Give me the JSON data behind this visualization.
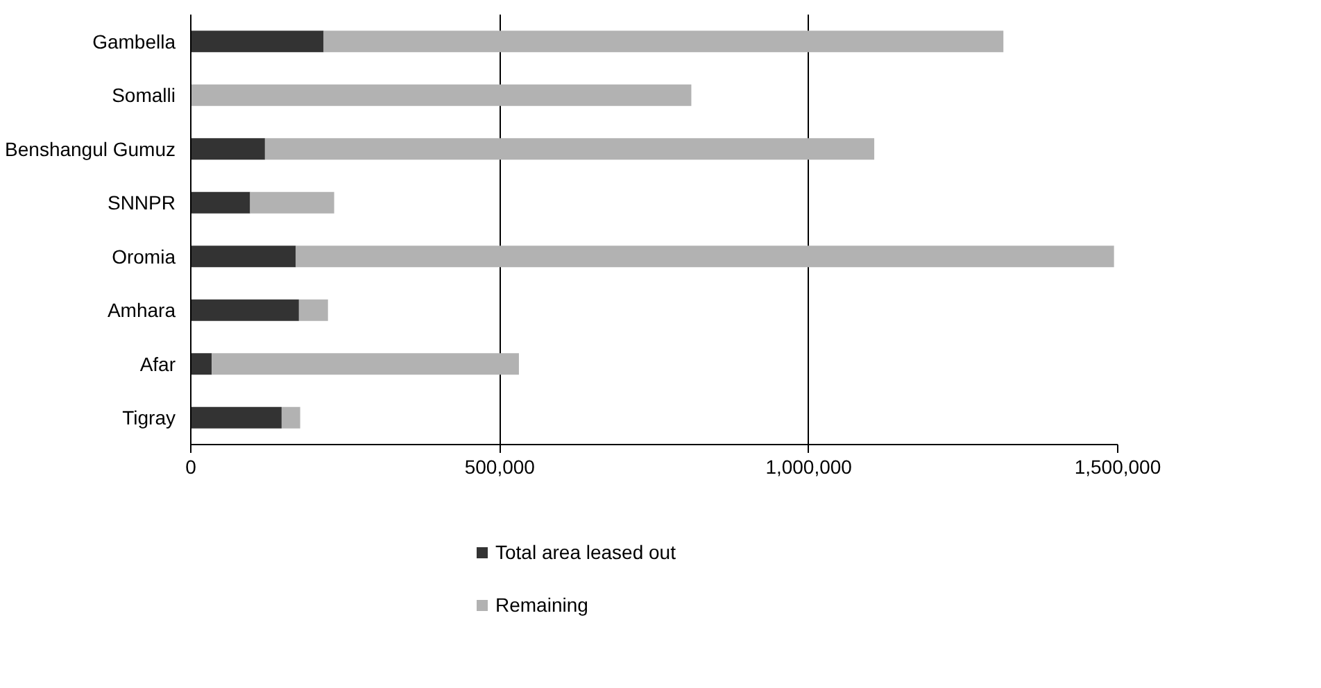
{
  "chart_data": {
    "type": "bar",
    "orientation": "horizontal",
    "stacked": true,
    "categories": [
      "Gambella",
      "Somalli",
      "Benshangul Gumuz",
      "SNNPR",
      "Oromia",
      "Amhara",
      "Afar",
      "Tigray"
    ],
    "series": [
      {
        "name": "Total area leased out",
        "color": "#333333",
        "values": [
          215000,
          0,
          120000,
          96000,
          170000,
          175000,
          34000,
          147000
        ]
      },
      {
        "name": "Remaining",
        "color": "#b2b2b2",
        "values": [
          1100000,
          810000,
          986000,
          136000,
          1324000,
          47000,
          497000,
          30000
        ]
      }
    ],
    "xlim": [
      0,
      1500000
    ],
    "xticks": [
      {
        "value": 0,
        "label": "0"
      },
      {
        "value": 500000,
        "label": "500,000"
      },
      {
        "value": 1000000,
        "label": "1,000,000"
      },
      {
        "value": 1500000,
        "label": "1,500,000"
      }
    ],
    "grid": "x",
    "legend": "bottom left"
  }
}
